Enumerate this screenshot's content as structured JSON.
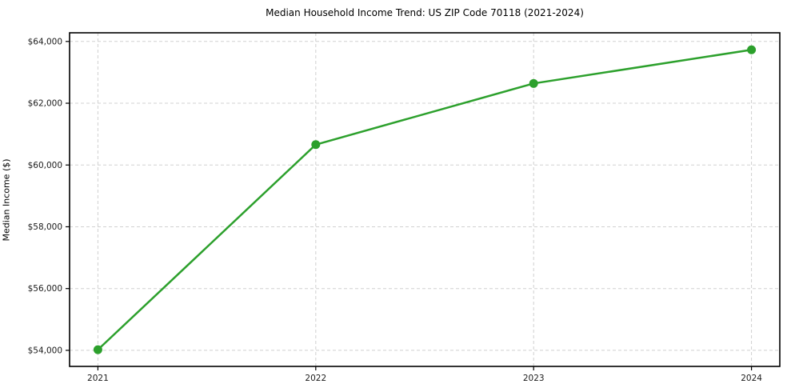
{
  "chart": {
    "title": "Median Household Income Trend: US ZIP Code 70118 (2021-2024)",
    "ylabel": "Median Income ($)"
  },
  "chart_data": {
    "type": "line",
    "title": "Median Household Income Trend: US ZIP Code 70118 (2021-2024)",
    "xlabel": "",
    "ylabel": "Median Income ($)",
    "x": [
      2021,
      2022,
      2023,
      2024
    ],
    "values": [
      54020,
      60660,
      62640,
      63730
    ],
    "xtick_labels": [
      "2021",
      "2022",
      "2023",
      "2024"
    ],
    "yticks": [
      54000,
      56000,
      58000,
      60000,
      62000,
      64000
    ],
    "ytick_labels": [
      "$54,000",
      "$56,000",
      "$58,000",
      "$60,000",
      "$62,000",
      "$64,000"
    ],
    "xlim": [
      2020.87,
      2024.13
    ],
    "ylim": [
      53480,
      64280
    ],
    "grid": true,
    "legend_position": "none",
    "line_color": "#2ca02c",
    "marker": "circle",
    "marker_radius": 5.5,
    "line_width": 2.5,
    "grid_color": "#d0d0d0",
    "spine_color": "#000000",
    "background_color": "#ffffff"
  }
}
